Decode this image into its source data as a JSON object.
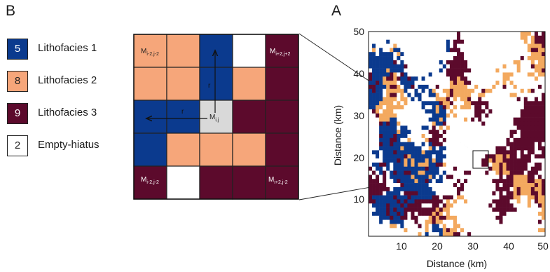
{
  "colors": {
    "lithofacies_1": "#0b3a8e",
    "lithofacies_2": "#f6a67a",
    "lithofacies_3": "#5c0a2c",
    "empty_hiatus": "#ffffff",
    "center_cell": "#d9d9d9",
    "map_orange": "#f3a95f"
  },
  "panel_b": {
    "letter": "B",
    "legend": [
      {
        "code": "5",
        "label": "Lithofacies 1",
        "color_key": "lithofacies_1"
      },
      {
        "code": "8",
        "label": "Lithofacies 2",
        "color_key": "lithofacies_2"
      },
      {
        "code": "9",
        "label": "Lithofacies 3",
        "color_key": "lithofacies_3"
      },
      {
        "code": "2",
        "label": "Empty-hiatus",
        "color_key": "empty_hiatus"
      }
    ],
    "grid": {
      "rows": [
        [
          "lithofacies_2",
          "lithofacies_2",
          "lithofacies_1",
          "empty_hiatus",
          "lithofacies_3"
        ],
        [
          "lithofacies_2",
          "lithofacies_2",
          "lithofacies_1",
          "lithofacies_2",
          "lithofacies_3"
        ],
        [
          "lithofacies_1",
          "lithofacies_1",
          "center_cell",
          "lithofacies_3",
          "lithofacies_3"
        ],
        [
          "lithofacies_1",
          "lithofacies_2",
          "lithofacies_2",
          "lithofacies_2",
          "lithofacies_3"
        ],
        [
          "lithofacies_3",
          "empty_hiatus",
          "lithofacies_3",
          "lithofacies_3",
          "lithofacies_3"
        ]
      ],
      "corner_labels": {
        "top_left": {
          "base": "M",
          "sub": "i-2,j-2"
        },
        "top_right": {
          "base": "M",
          "sub": "i+2,j+2"
        },
        "bottom_left": {
          "base": "M",
          "sub": "i-2,j-2"
        },
        "bottom_right": {
          "base": "M",
          "sub": "i+2,j-2"
        },
        "center": {
          "base": "M",
          "sub": "i,j"
        }
      },
      "vertical_radius_label": "r",
      "horizontal_radius_label": "r"
    }
  },
  "panel_a": {
    "letter": "A",
    "x_axis_label": "Distance (km)",
    "y_axis_label": "Distance (km)",
    "x_ticks": [
      "10",
      "20",
      "30",
      "40",
      "50"
    ],
    "y_ticks": [
      "10",
      "20",
      "30",
      "40",
      "50"
    ],
    "x_range": [
      1,
      50
    ],
    "y_range": [
      1,
      50
    ],
    "inset_box_center": [
      33,
      20
    ]
  }
}
